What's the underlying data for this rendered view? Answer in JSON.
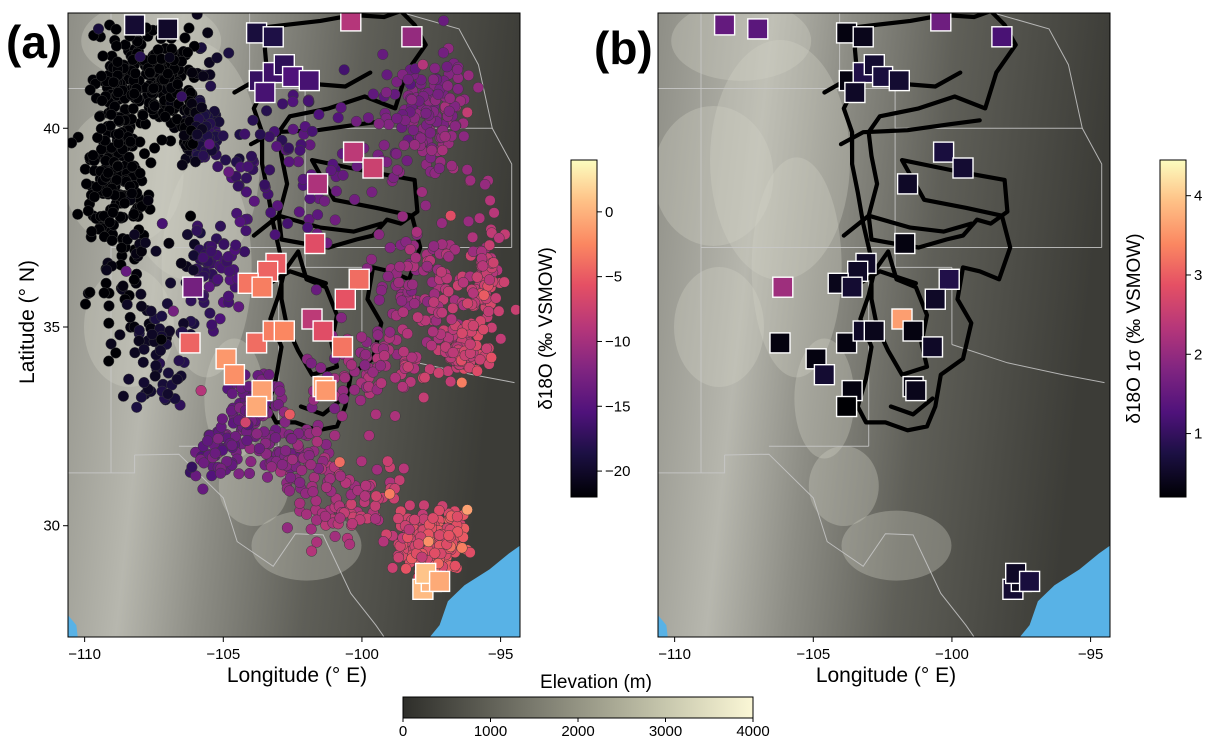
{
  "panels": [
    {
      "letter": "(a)",
      "xlabel": "Longitude (° E)",
      "ylabel": "Latitude (° N)",
      "x_ticks": [
        "−110",
        "−105",
        "−100",
        "−95"
      ],
      "y_ticks": [
        "40",
        "35",
        "30"
      ],
      "colorbar": {
        "label": "δ18O (‰ VSMOW)",
        "colormap": "magma",
        "range": [
          -22,
          4
        ],
        "ticks": [
          "0",
          "−5",
          "−10",
          "−15",
          "−20"
        ]
      }
    },
    {
      "letter": "(b)",
      "xlabel": "Longitude (° E)",
      "x_ticks": [
        "−110",
        "−105",
        "−100",
        "−95"
      ],
      "colorbar": {
        "label": "δ18O 1σ (‰ VSMOW)",
        "colormap": "magma",
        "range": [
          0.2,
          4.45
        ],
        "ticks": [
          "4",
          "3",
          "2",
          "1"
        ]
      }
    }
  ],
  "elevation_colorbar": {
    "label": "Elevation (m)",
    "range": [
      0,
      4000
    ],
    "ticks": [
      "0",
      "1000",
      "2000",
      "3000",
      "4000"
    ]
  },
  "map_extent": {
    "lon": [
      -110.6,
      -94.3
    ],
    "lat": [
      27.2,
      42.9
    ]
  },
  "colors": {
    "ocean": "#58b2e6",
    "boundary": "#000000",
    "state_lines": "#c8c8c8",
    "marker_edge": "#ffffff"
  },
  "chart_data": {
    "type": "scatter",
    "x_quantity": "longitude (° E)",
    "y_quantity": "latitude (° N)",
    "site_markers": [
      [
        -108.2,
        42.6,
        -19.5,
        1.5
      ],
      [
        -107.0,
        42.5,
        -20.0,
        1.4
      ],
      [
        -103.8,
        42.4,
        -19.0,
        0.3
      ],
      [
        -103.2,
        42.3,
        -18.5,
        0.4
      ],
      [
        -100.4,
        42.7,
        -9.0,
        1.6
      ],
      [
        -98.2,
        42.3,
        -11.0,
        1.2
      ],
      [
        -103.7,
        41.2,
        -17.0,
        0.3
      ],
      [
        -103.2,
        41.4,
        -16.5,
        0.8
      ],
      [
        -102.8,
        41.6,
        -17.5,
        0.6
      ],
      [
        -103.5,
        40.9,
        -16.0,
        0.5
      ],
      [
        -102.5,
        41.3,
        -15.5,
        0.7
      ],
      [
        -101.9,
        41.2,
        -16.0,
        0.6
      ],
      [
        -100.3,
        39.4,
        -8.5,
        0.7
      ],
      [
        -99.6,
        39.0,
        -7.5,
        0.6
      ],
      [
        -101.6,
        38.6,
        -9.5,
        0.5
      ],
      [
        -101.7,
        37.1,
        -6.0,
        0.3
      ],
      [
        -103.1,
        36.6,
        -5.0,
        0.5
      ],
      [
        -103.4,
        36.4,
        -4.5,
        0.5
      ],
      [
        -104.1,
        36.1,
        -3.5,
        0.4
      ],
      [
        -103.6,
        36.0,
        -3.0,
        0.6
      ],
      [
        -100.1,
        36.2,
        -4.0,
        0.8
      ],
      [
        -100.6,
        35.7,
        -5.5,
        0.5
      ],
      [
        -101.8,
        35.2,
        -8.5,
        3.6
      ],
      [
        -103.8,
        34.6,
        -4.0,
        0.3
      ],
      [
        -103.2,
        34.9,
        -3.0,
        0.5
      ],
      [
        -102.8,
        34.9,
        -2.5,
        0.4
      ],
      [
        -101.4,
        34.9,
        -6.0,
        0.3
      ],
      [
        -100.7,
        34.5,
        -3.5,
        0.5
      ],
      [
        -104.9,
        34.2,
        -1.5,
        0.3
      ],
      [
        -104.6,
        33.8,
        -2.0,
        0.6
      ],
      [
        -103.6,
        33.4,
        -1.0,
        0.3
      ],
      [
        -103.8,
        33.0,
        -0.5,
        0.2
      ],
      [
        -101.4,
        33.5,
        -0.8,
        0.3
      ],
      [
        -101.3,
        33.4,
        -1.5,
        0.4
      ],
      [
        -106.1,
        36.0,
        -13.0,
        2.1
      ],
      [
        -106.2,
        34.6,
        -4.5,
        0.3
      ],
      [
        -97.8,
        28.4,
        0.5,
        0.6
      ],
      [
        -97.5,
        28.6,
        0.0,
        0.4
      ],
      [
        -97.7,
        28.8,
        1.0,
        0.5
      ],
      [
        -97.2,
        28.6,
        -0.5,
        0.7
      ]
    ],
    "precip_points_sample": [
      [
        -109.5,
        42.5,
        -19
      ],
      [
        -108.0,
        41.8,
        -18
      ],
      [
        -106.5,
        40.8,
        -17
      ],
      [
        -105.5,
        39.6,
        -15
      ],
      [
        -104.8,
        38.9,
        -14
      ],
      [
        -107.2,
        37.6,
        -16
      ],
      [
        -108.5,
        36.4,
        -14
      ],
      [
        -106.8,
        35.4,
        -13
      ],
      [
        -105.8,
        33.4,
        -9
      ],
      [
        -104.2,
        32.6,
        -7
      ],
      [
        -102.6,
        32.8,
        -5
      ],
      [
        -100.8,
        31.6,
        -4
      ],
      [
        -99.0,
        30.8,
        -3
      ],
      [
        -97.6,
        29.6,
        -2
      ],
      [
        -96.2,
        30.4,
        -1
      ],
      [
        -96.4,
        33.6,
        -3
      ],
      [
        -95.6,
        35.8,
        -5
      ],
      [
        -96.8,
        37.8,
        -6
      ],
      [
        -96.2,
        40.4,
        -8
      ],
      [
        -97.8,
        41.6,
        -9
      ]
    ]
  }
}
